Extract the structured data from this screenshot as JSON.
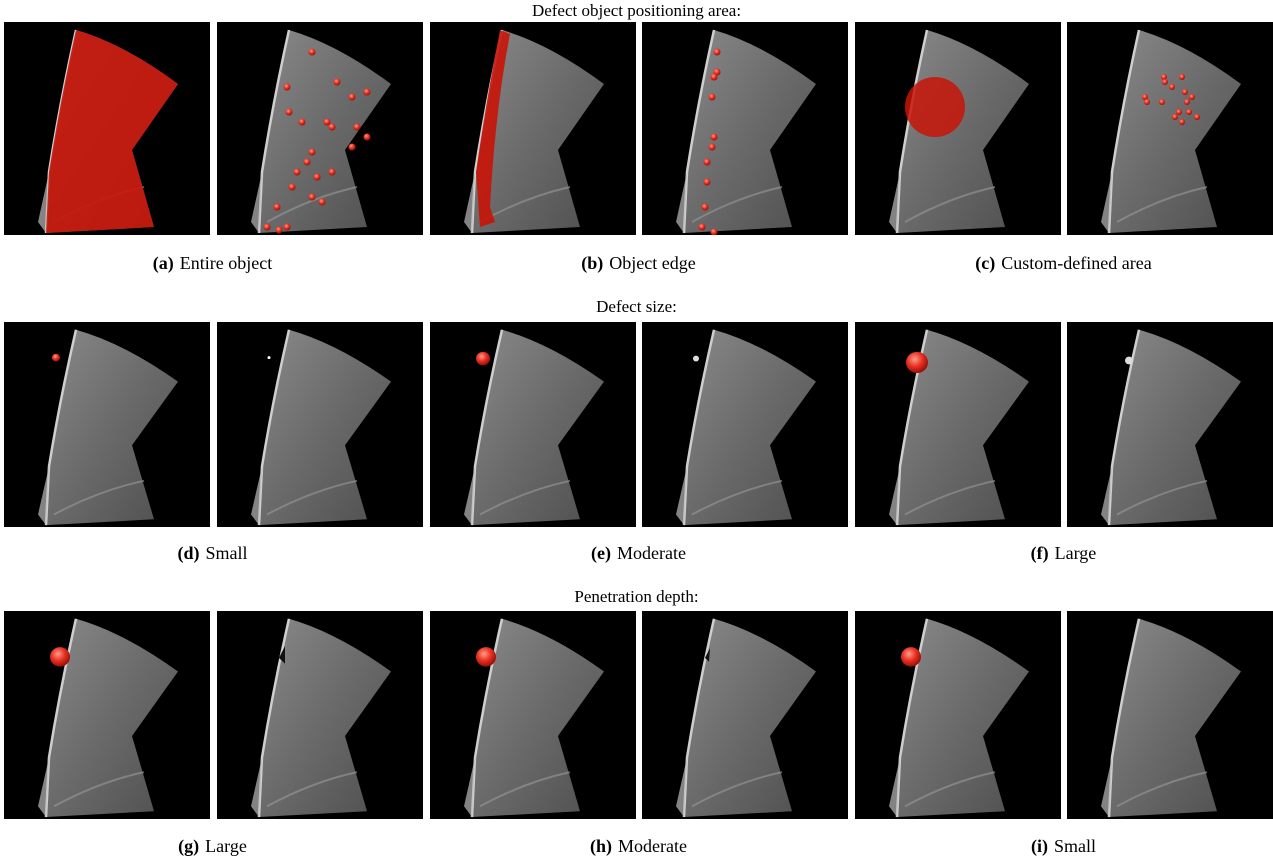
{
  "sections": [
    {
      "heading": "Defect object positioning area:",
      "panels": [
        {
          "label": "(a)",
          "text": "Entire object"
        },
        {
          "label": "(b)",
          "text": "Object edge"
        },
        {
          "label": "(c)",
          "text": "Custom-defined area"
        }
      ]
    },
    {
      "heading": "Defect size:",
      "panels": [
        {
          "label": "(d)",
          "text": "Small"
        },
        {
          "label": "(e)",
          "text": "Moderate"
        },
        {
          "label": "(f)",
          "text": "Large"
        }
      ]
    },
    {
      "heading": "Penetration depth:",
      "panels": [
        {
          "label": "(g)",
          "text": "Large"
        },
        {
          "label": "(h)",
          "text": "Moderate"
        },
        {
          "label": "(i)",
          "text": "Small"
        }
      ]
    }
  ]
}
